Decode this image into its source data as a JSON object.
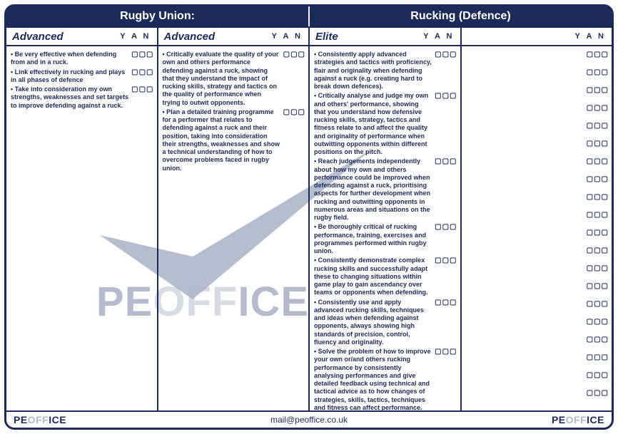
{
  "header": {
    "left": "Rugby Union:",
    "right": "Rucking (Defence)"
  },
  "yan_label": "Y A N",
  "boxes_glyph": "▢▢▢",
  "columns": [
    {
      "level": "Advanced",
      "items": [
        "Be very effective when defending from and in a ruck.",
        "Link effectively in rucking and plays in all phases of defence",
        "Take into consideration my own strengths, weaknesses and set targets to improve defending against a ruck."
      ]
    },
    {
      "level": "Advanced",
      "items": [
        "Critically evaluate the quality of your own and others performance defending against a ruck, showing that they understand the impact of rucking skills, strategy and tactics on the quality of performance when trying to outwit opponents.",
        "Plan a detailed training programme for a performer that relates to defending against a ruck and their position, taking into consideration their strengths, weaknesses and show a technical understanding of how to overcome problems faced in rugby union."
      ]
    },
    {
      "level": "Elite",
      "items": [
        "Consistently apply advanced strategies and tactics with proficiency, flair and originality when defending against a ruck (e.g. creating hard to break down defences).",
        "Critically analyse and judge my own and others' performance, showing that you understand how defensive rucking skills, strategy, tactics and fitness relate to and affect the quality and originality of performance when outwitting opponents within different positions on the pitch.",
        "Reach judgements independently about how my own and others performance could be improved when defending against a ruck, prioritising aspects for further development when rucking and outwitting opponents in numerous areas and situations on the rugby field.",
        "Be thoroughly critical of rucking performance, training, exercises and programmes performed within rugby union.",
        "Consistently demonstrate complex rucking skills and successfully adapt these to changing situations within game play to gain ascendancy over teams or opponents when defending.",
        "Consistently use and apply advanced rucking skills, techniques and ideas when defending against opponents, always showing high standards of precision, control, fluency and originality.",
        "Solve the problem of how to improve your own or/and others rucking performance by consistently analysing performances and give detailed feedback using technical and tactical advice as to how changes of strategies, skills, tactics, techniques and fitness can affect performance."
      ]
    },
    {
      "level": "",
      "items": [],
      "empty_rows": 20
    }
  ],
  "footer": {
    "email": "mail@peoffice.co.uk",
    "logo_pe": "PE",
    "logo_off": "OFF",
    "logo_ice": "ICE"
  },
  "colors": {
    "primary": "#1c2a5a",
    "watermark": "#7a8aa8"
  }
}
